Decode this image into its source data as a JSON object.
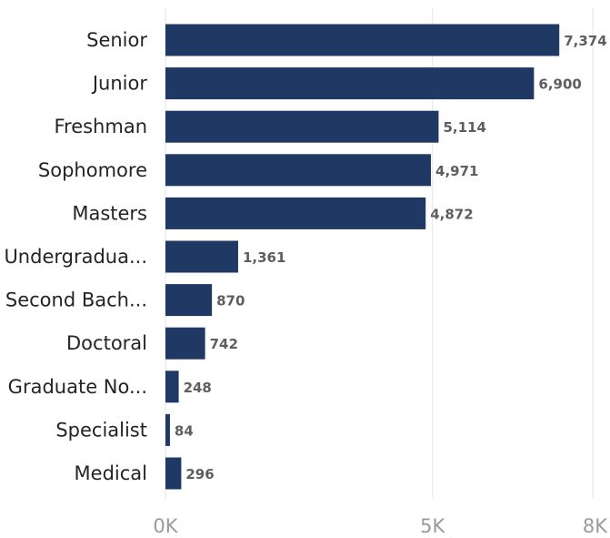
{
  "chart_data": {
    "type": "bar",
    "orientation": "horizontal",
    "categories": [
      "Senior",
      "Junior",
      "Freshman",
      "Sophomore",
      "Masters",
      "Undergradua...",
      "Second Bach...",
      "Doctoral",
      "Graduate No...",
      "Specialist",
      "Medical"
    ],
    "values": [
      7374,
      6900,
      5114,
      4971,
      4872,
      1361,
      870,
      742,
      248,
      84,
      296
    ],
    "value_labels": [
      "7,374",
      "6,900",
      "5,114",
      "4,971",
      "4,872",
      "1,361",
      "870",
      "742",
      "248",
      "84",
      "296"
    ],
    "title": "",
    "xlabel": "",
    "ylabel": "",
    "xlim": [
      0,
      8000
    ],
    "ticks": [
      0,
      5000,
      8000
    ],
    "tick_labels": [
      "0K",
      "5K",
      "8K"
    ],
    "grid": true,
    "bar_color": "#1f3864"
  }
}
